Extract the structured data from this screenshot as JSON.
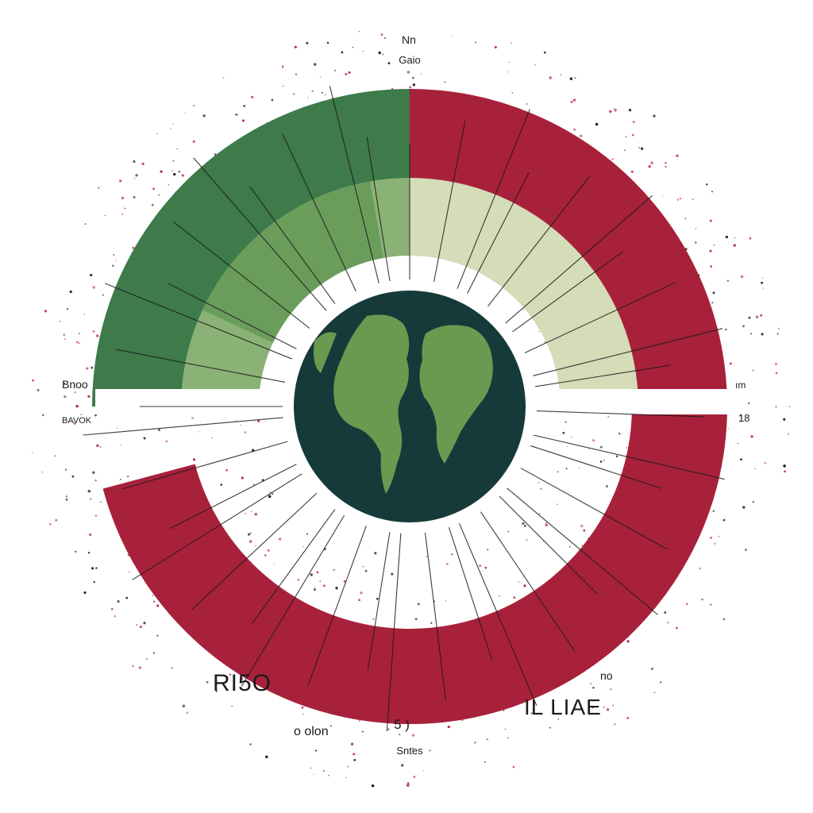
{
  "colors": {
    "background": "#ffffff",
    "red": "#a8213b",
    "pale_green": "#d4dcb8",
    "light_green": "#8bb276",
    "mid_green": "#6a9c5c",
    "dark_green": "#3e7a4a",
    "globe_ocean": "#163a3a",
    "globe_land": "#6a9a50",
    "speckle_red": "#b82840",
    "speckle_dark": "#1e1e1e",
    "ray": "#1a1a1a"
  },
  "labels": {
    "top_line1": "Nn",
    "top_line2": "Gaio",
    "left_upper": "Bnoo",
    "left_lower": "BAVOK",
    "right_upper": "ım",
    "right_lower": "18",
    "bottom_left_big": "RI5O",
    "bottom_left_small": "o olon",
    "bottom_center_upper": "5 )",
    "bottom_center_lower": "Sntes",
    "bottom_right_big": "IL LIAE",
    "bottom_right_small": "no"
  },
  "icons": {
    "center": "globe-icon"
  },
  "chart_data": {
    "type": "radial-bar",
    "title": "",
    "segments": [
      {
        "ring": "outer",
        "color": "#a8213b",
        "start_deg": 270,
        "end_deg": 450
      },
      {
        "ring": "outer",
        "color": "#a8213b",
        "start_deg": 90,
        "end_deg": 165
      },
      {
        "ring": "outer",
        "color": "#3e7a4a",
        "start_deg": 180,
        "end_deg": 270
      },
      {
        "ring": "inner",
        "color": "#d4dcb8",
        "start_deg": 270,
        "end_deg": 360
      },
      {
        "ring": "inner",
        "color": "#8bb276",
        "start_deg": 180,
        "end_deg": 270
      },
      {
        "ring": "inner",
        "color": "#6a9c5c",
        "start_deg": 205,
        "end_deg": 260
      }
    ],
    "annotations": [
      "Nn",
      "Gaio",
      "Bnoo",
      "BAVOK",
      "ım",
      "18",
      "RI5O",
      "o olon",
      "5 )",
      "Sntes",
      "IL LIAE",
      "no"
    ]
  }
}
